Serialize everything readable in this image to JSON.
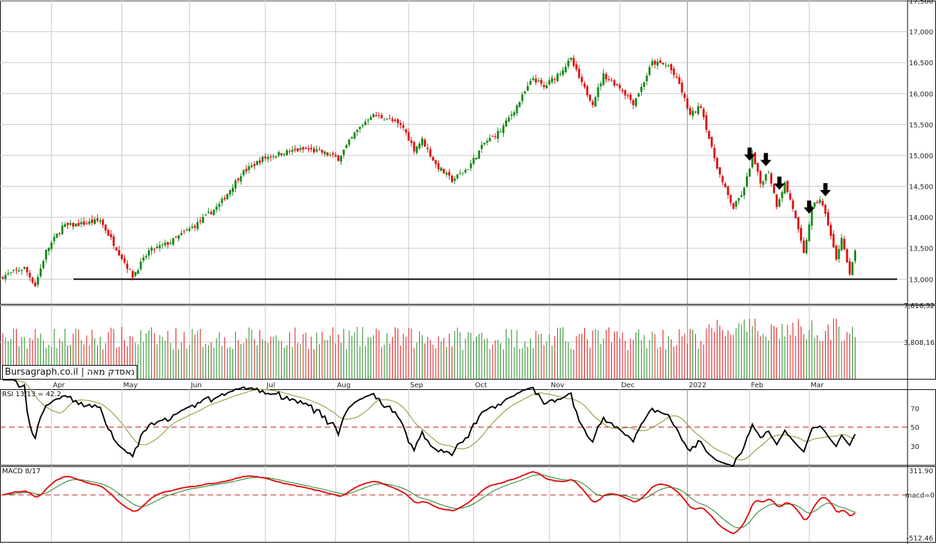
{
  "brand": {
    "site": "Bursagraph.co.il",
    "separator": "|",
    "instrument": "נאסדק מאה"
  },
  "colors": {
    "up": "#1b8a1b",
    "down": "#e01010",
    "grid": "#c8c8c8",
    "rsi_line": "#000000",
    "rsi_avg": "#8a8a2a",
    "macd_line": "#e01010",
    "macd_signal": "#1b7a1b",
    "dashed_ref": "#c02020"
  },
  "chart_data": {
    "type": "candlestick",
    "price_axis": {
      "ticks": [
        "17,500",
        "17,000",
        "16,500",
        "16,000",
        "15,500",
        "15,000",
        "14,500",
        "14,000",
        "13,500",
        "13,000"
      ],
      "range": [
        12600,
        17500
      ]
    },
    "support_line": 13000,
    "months": [
      "Apr",
      "May",
      "Jun",
      "Jul",
      "Aug",
      "Sep",
      "Oct",
      "Nov",
      "Dec",
      "2022",
      "Feb",
      "Mar"
    ],
    "anchors": [
      {
        "t": 0,
        "v": 13050
      },
      {
        "t": 8,
        "v": 13180
      },
      {
        "t": 12,
        "v": 12900
      },
      {
        "t": 16,
        "v": 13450
      },
      {
        "t": 22,
        "v": 13850
      },
      {
        "t": 30,
        "v": 13900
      },
      {
        "t": 36,
        "v": 13950
      },
      {
        "t": 42,
        "v": 13500
      },
      {
        "t": 48,
        "v": 13050
      },
      {
        "t": 54,
        "v": 13450
      },
      {
        "t": 62,
        "v": 13600
      },
      {
        "t": 72,
        "v": 13900
      },
      {
        "t": 80,
        "v": 14200
      },
      {
        "t": 88,
        "v": 14700
      },
      {
        "t": 96,
        "v": 14950
      },
      {
        "t": 104,
        "v": 15050
      },
      {
        "t": 112,
        "v": 15100
      },
      {
        "t": 118,
        "v": 15050
      },
      {
        "t": 124,
        "v": 14950
      },
      {
        "t": 130,
        "v": 15350
      },
      {
        "t": 136,
        "v": 15650
      },
      {
        "t": 142,
        "v": 15600
      },
      {
        "t": 148,
        "v": 15450
      },
      {
        "t": 152,
        "v": 15100
      },
      {
        "t": 155,
        "v": 15250
      },
      {
        "t": 160,
        "v": 14850
      },
      {
        "t": 166,
        "v": 14600
      },
      {
        "t": 172,
        "v": 14800
      },
      {
        "t": 178,
        "v": 15200
      },
      {
        "t": 184,
        "v": 15400
      },
      {
        "t": 190,
        "v": 15800
      },
      {
        "t": 196,
        "v": 16250
      },
      {
        "t": 200,
        "v": 16100
      },
      {
        "t": 206,
        "v": 16350
      },
      {
        "t": 210,
        "v": 16550
      },
      {
        "t": 214,
        "v": 16150
      },
      {
        "t": 218,
        "v": 15850
      },
      {
        "t": 222,
        "v": 16300
      },
      {
        "t": 228,
        "v": 16100
      },
      {
        "t": 233,
        "v": 15850
      },
      {
        "t": 236,
        "v": 16100
      },
      {
        "t": 240,
        "v": 16500
      },
      {
        "t": 246,
        "v": 16450
      },
      {
        "t": 250,
        "v": 16150
      },
      {
        "t": 254,
        "v": 15650
      },
      {
        "t": 258,
        "v": 15800
      },
      {
        "t": 262,
        "v": 15100
      },
      {
        "t": 266,
        "v": 14550
      },
      {
        "t": 270,
        "v": 14150
      },
      {
        "t": 274,
        "v": 14450
      },
      {
        "t": 277,
        "v": 15000
      },
      {
        "t": 280,
        "v": 14550
      },
      {
        "t": 283,
        "v": 14750
      },
      {
        "t": 286,
        "v": 14200
      },
      {
        "t": 289,
        "v": 14550
      },
      {
        "t": 292,
        "v": 14150
      },
      {
        "t": 296,
        "v": 13400
      },
      {
        "t": 299,
        "v": 14150
      },
      {
        "t": 302,
        "v": 14300
      },
      {
        "t": 305,
        "v": 13900
      },
      {
        "t": 308,
        "v": 13300
      },
      {
        "t": 310,
        "v": 13700
      },
      {
        "t": 313,
        "v": 13050
      },
      {
        "t": 315,
        "v": 13450
      }
    ],
    "arrow_days": [
      276,
      282,
      287,
      298,
      304
    ],
    "volume_axis": {
      "ticks": [
        "7,616,32",
        "3,808,16"
      ],
      "max": 7616.32
    },
    "rsi": {
      "label": "RSI 13/13 = 42.2",
      "ticks": [
        "70",
        "50",
        "30"
      ],
      "range": [
        10,
        90
      ],
      "ref": 50,
      "period": 13
    },
    "macd": {
      "label": "MACD 8/17",
      "ticks": [
        "311.90",
        "macd=0",
        "-512.46"
      ],
      "range": [
        -512.46,
        311.9
      ],
      "ref": 0,
      "fast": 8,
      "slow": 17,
      "signal": 9
    }
  }
}
